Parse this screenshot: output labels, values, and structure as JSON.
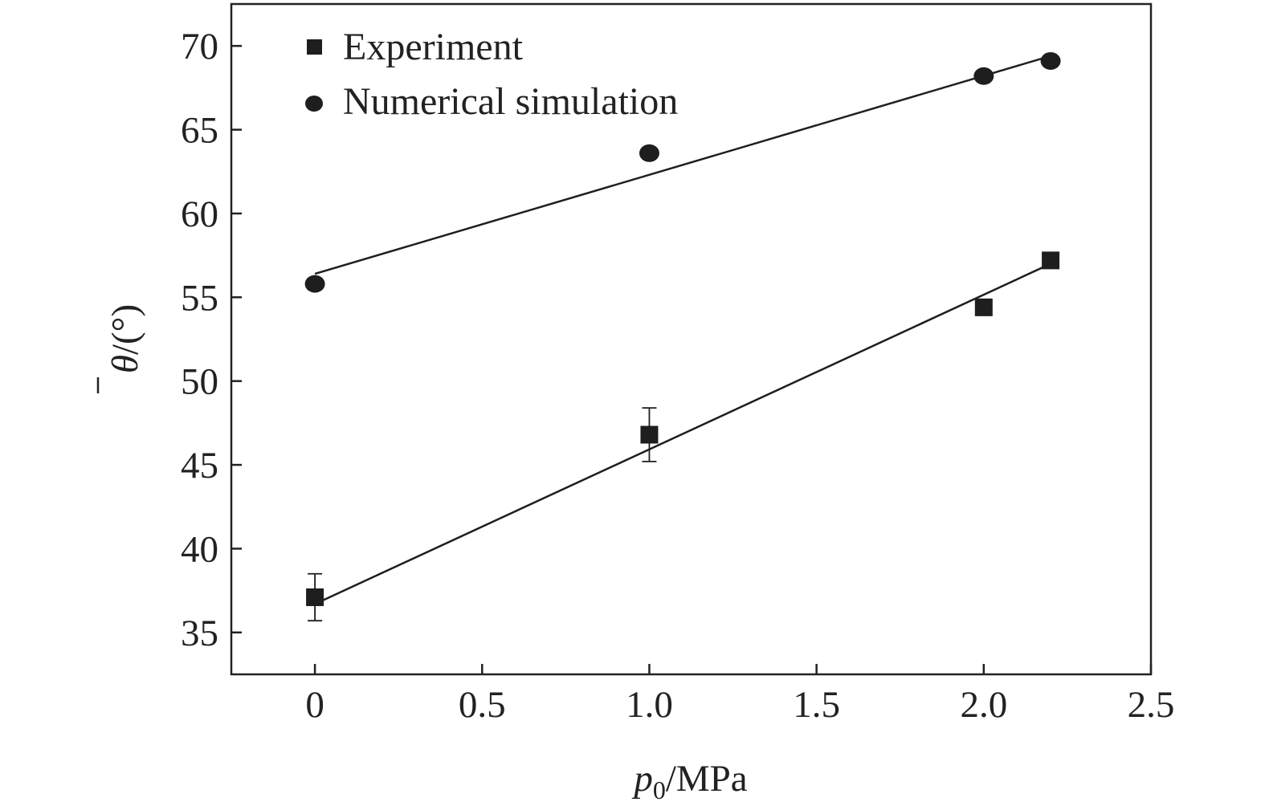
{
  "chart_data": {
    "type": "scatter",
    "title": "",
    "xlabel": {
      "var": "p",
      "sub": "0",
      "unit": "/MPa"
    },
    "ylabel": {
      "var": "θ",
      "unit": "/(°)"
    },
    "xlim": [
      -0.25,
      2.5
    ],
    "ylim": [
      32.5,
      72.5
    ],
    "xticks": [
      0,
      0.5,
      1.0,
      1.5,
      2.0,
      2.5
    ],
    "xtick_labels": [
      "0",
      "0.5",
      "1.0",
      "1.5",
      "2.0",
      "2.5"
    ],
    "yticks": [
      35,
      40,
      45,
      50,
      55,
      60,
      65,
      70
    ],
    "ytick_labels": [
      "35",
      "40",
      "45",
      "50",
      "55",
      "60",
      "65",
      "70"
    ],
    "grid": false,
    "legend_position": "top-left",
    "series": [
      {
        "name": "Experiment",
        "marker": "square",
        "x": [
          0,
          1.0,
          2.0,
          2.2
        ],
        "y": [
          37.1,
          46.8,
          54.4,
          57.2
        ],
        "error": [
          1.4,
          1.6,
          null,
          null
        ],
        "fit": {
          "x": [
            0,
            2.2
          ],
          "y": [
            36.7,
            57.0
          ]
        }
      },
      {
        "name": "Numerical simulation",
        "marker": "circle",
        "x": [
          0,
          1.0,
          2.0,
          2.2
        ],
        "y": [
          55.8,
          63.6,
          68.2,
          69.1
        ],
        "error": [
          null,
          null,
          null,
          null
        ],
        "fit": {
          "x": [
            0,
            2.2
          ],
          "y": [
            56.4,
            69.4
          ]
        }
      }
    ],
    "colors": {
      "marker": "#1e1e1e",
      "axis": "#222222"
    }
  }
}
